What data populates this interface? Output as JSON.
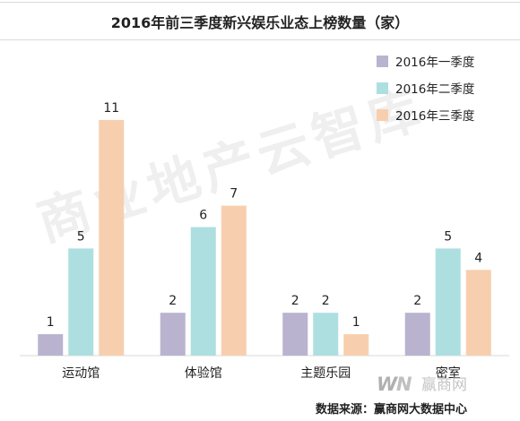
{
  "chart_title": "2016年前三季度新兴娱乐业态上榜数量（家）",
  "source": "数据来源：赢商网大数据中心",
  "watermark": "商业地产云智库",
  "logo_text": "WN赢商网",
  "colors": {
    "series1": "#b9b3cf",
    "series2": "#aedfe0",
    "series3": "#f7cfae",
    "axis": "#d9d9d9"
  },
  "chart_data": {
    "type": "bar",
    "title": "2016年前三季度新兴娱乐业态上榜数量（家）",
    "categories": [
      "运动馆",
      "体验馆",
      "主题乐园",
      "密室"
    ],
    "series": [
      {
        "name": "2016年一季度",
        "values": [
          1,
          2,
          2,
          2
        ]
      },
      {
        "name": "2016年二季度",
        "values": [
          5,
          6,
          2,
          5
        ]
      },
      {
        "name": "2016年三季度",
        "values": [
          11,
          7,
          1,
          4
        ]
      }
    ],
    "ylim": [
      0,
      12
    ],
    "grid": false,
    "legend": "top-right",
    "xlabel": "",
    "ylabel": ""
  }
}
